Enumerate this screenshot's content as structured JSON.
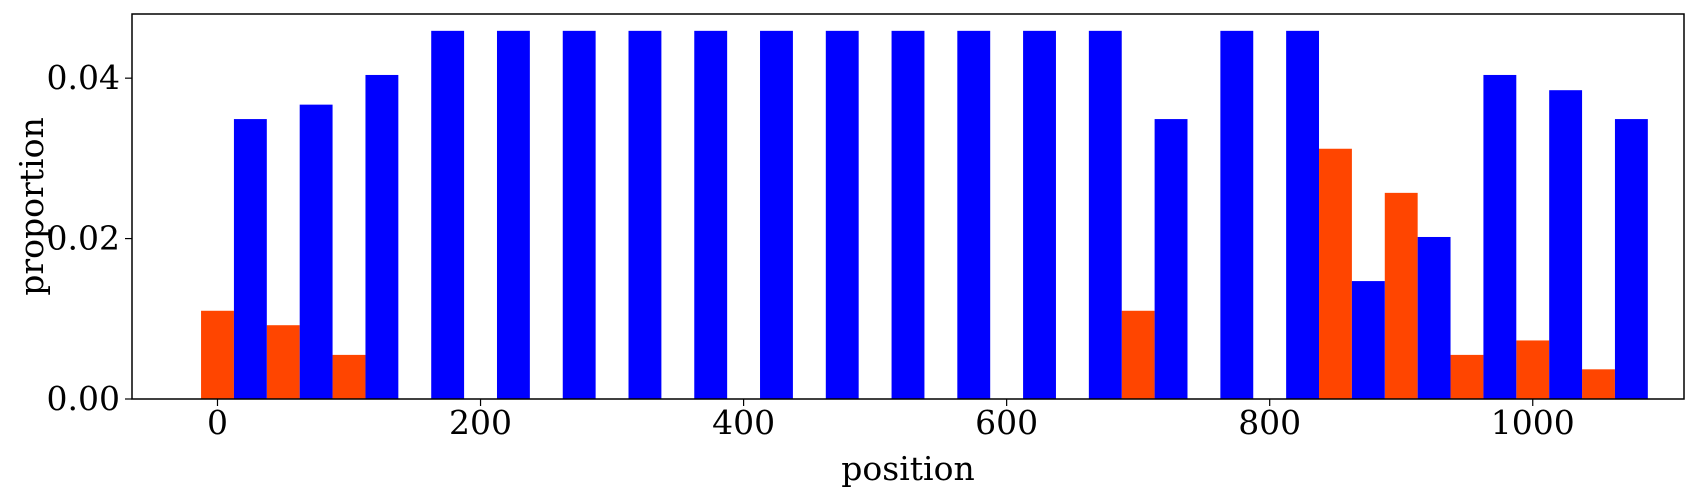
{
  "chart_data": {
    "type": "bar",
    "title": "",
    "xlabel": "position",
    "ylabel": "proportion",
    "xlim": [
      -65,
      1115
    ],
    "ylim": [
      0,
      0.048
    ],
    "x_ticks": [
      "0",
      "200",
      "400",
      "600",
      "800",
      "1000"
    ],
    "y_ticks": [
      "0.00",
      "0.02",
      "0.04"
    ],
    "grid": false,
    "legend": "none",
    "bar_width": 25,
    "series": [
      {
        "color": "#ff4500",
        "points": [
          {
            "x": 0,
            "y": 0.011
          },
          {
            "x": 50,
            "y": 0.0092
          },
          {
            "x": 100,
            "y": 0.0055
          },
          {
            "x": 700,
            "y": 0.011
          },
          {
            "x": 850,
            "y": 0.0312
          },
          {
            "x": 900,
            "y": 0.0257
          },
          {
            "x": 950,
            "y": 0.0055
          },
          {
            "x": 1000,
            "y": 0.0073
          },
          {
            "x": 1050,
            "y": 0.0037
          }
        ]
      },
      {
        "color": "#0000ff",
        "points": [
          {
            "x": 25,
            "y": 0.0349
          },
          {
            "x": 75,
            "y": 0.0367
          },
          {
            "x": 125,
            "y": 0.0404
          },
          {
            "x": 175,
            "y": 0.0459
          },
          {
            "x": 225,
            "y": 0.0459
          },
          {
            "x": 275,
            "y": 0.0459
          },
          {
            "x": 325,
            "y": 0.0459
          },
          {
            "x": 375,
            "y": 0.0459
          },
          {
            "x": 425,
            "y": 0.0459
          },
          {
            "x": 475,
            "y": 0.0459
          },
          {
            "x": 525,
            "y": 0.0459
          },
          {
            "x": 575,
            "y": 0.0459
          },
          {
            "x": 625,
            "y": 0.0459
          },
          {
            "x": 675,
            "y": 0.0459
          },
          {
            "x": 725,
            "y": 0.0349
          },
          {
            "x": 775,
            "y": 0.0459
          },
          {
            "x": 825,
            "y": 0.0459
          },
          {
            "x": 875,
            "y": 0.0147
          },
          {
            "x": 925,
            "y": 0.0202
          },
          {
            "x": 975,
            "y": 0.0404
          },
          {
            "x": 1025,
            "y": 0.0385
          },
          {
            "x": 1075,
            "y": 0.0349
          }
        ]
      }
    ]
  }
}
